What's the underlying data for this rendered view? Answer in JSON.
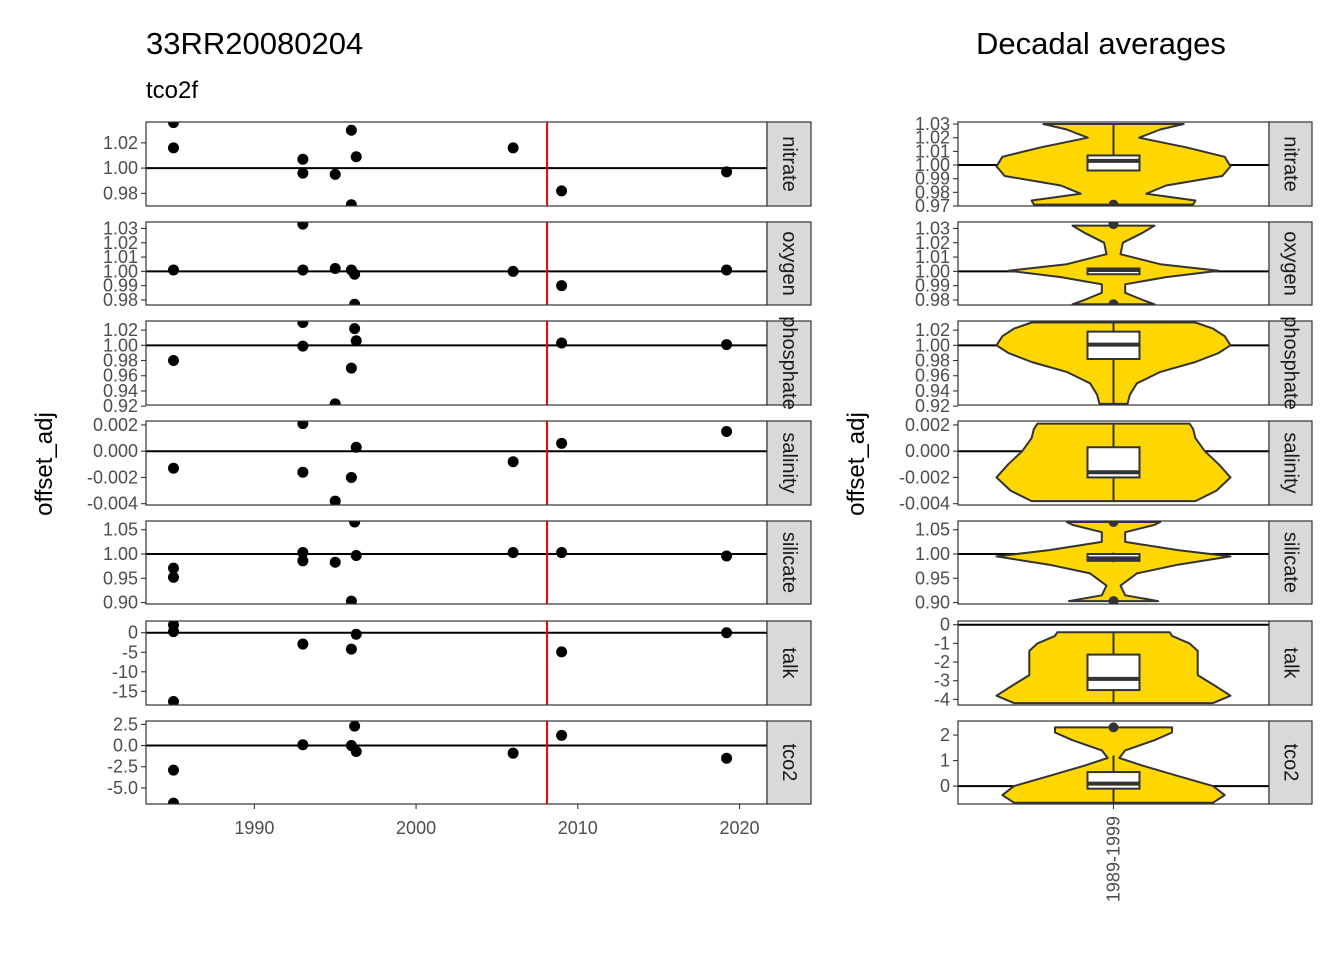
{
  "chart_data": [
    {
      "type": "scatter",
      "title": "33RR20080204",
      "subtitle": "tco2f",
      "xlabel": "",
      "ylabel": "offset_adj",
      "xlim": [
        1983.3,
        2021.7
      ],
      "xticks": [
        1990,
        2000,
        2010,
        2020
      ],
      "xtick_labels": [
        "1990",
        "2000",
        "2010",
        "2020"
      ],
      "reference_year": 2008.1,
      "reference_color": "#ee0000",
      "point_color": "#000000",
      "hline_color": "#000000",
      "panels": [
        {
          "facet": "nitrate",
          "hline": 1.0,
          "ylim": [
            0.97,
            1.0365
          ],
          "yticks": [
            0.98,
            1.0,
            1.02
          ],
          "ytick_labels": [
            "0.98",
            "1.00",
            "1.02"
          ],
          "points": [
            {
              "x": 1985,
              "y": 1.036
            },
            {
              "x": 1985,
              "y": 1.016
            },
            {
              "x": 1993,
              "y": 1.007
            },
            {
              "x": 1993,
              "y": 0.996
            },
            {
              "x": 1995,
              "y": 0.995
            },
            {
              "x": 1996,
              "y": 1.03
            },
            {
              "x": 1996,
              "y": 0.971
            },
            {
              "x": 1996.3,
              "y": 1.009
            },
            {
              "x": 2006,
              "y": 1.016
            },
            {
              "x": 2009,
              "y": 0.982
            },
            {
              "x": 2019.2,
              "y": 0.997
            }
          ]
        },
        {
          "facet": "oxygen",
          "hline": 1.0,
          "ylim": [
            0.9765,
            1.0345
          ],
          "yticks": [
            0.98,
            0.99,
            1.0,
            1.01,
            1.02,
            1.03
          ],
          "ytick_labels": [
            "0.98",
            "0.99",
            "1.00",
            "1.01",
            "1.02",
            "1.03"
          ],
          "points": [
            {
              "x": 1985,
              "y": 1.001
            },
            {
              "x": 1993,
              "y": 1.033
            },
            {
              "x": 1993,
              "y": 1.001
            },
            {
              "x": 1995,
              "y": 1.002
            },
            {
              "x": 1996,
              "y": 1.001
            },
            {
              "x": 1996.2,
              "y": 0.998
            },
            {
              "x": 1996.2,
              "y": 0.977
            },
            {
              "x": 2006,
              "y": 1.0
            },
            {
              "x": 2009,
              "y": 0.99
            },
            {
              "x": 2019.2,
              "y": 1.001
            }
          ]
        },
        {
          "facet": "phosphate",
          "hline": 1.0,
          "ylim": [
            0.9215,
            1.032
          ],
          "yticks": [
            0.92,
            0.94,
            0.96,
            0.98,
            1.0,
            1.02
          ],
          "ytick_labels": [
            "0.92",
            "0.94",
            "0.96",
            "0.98",
            "1.00",
            "1.02"
          ],
          "points": [
            {
              "x": 1985,
              "y": 0.98
            },
            {
              "x": 1993,
              "y": 1.03
            },
            {
              "x": 1993,
              "y": 0.999
            },
            {
              "x": 1995,
              "y": 0.923
            },
            {
              "x": 1996,
              "y": 0.97
            },
            {
              "x": 1996.2,
              "y": 1.022
            },
            {
              "x": 1996.3,
              "y": 1.006
            },
            {
              "x": 2009,
              "y": 1.003
            },
            {
              "x": 2019.2,
              "y": 1.001
            }
          ]
        },
        {
          "facet": "salinity",
          "hline": 0.0,
          "ylim": [
            -0.0041,
            0.0023
          ],
          "yticks": [
            -0.004,
            -0.002,
            0.0,
            0.002
          ],
          "ytick_labels": [
            "-0.004",
            "-0.002",
            "0.000",
            "0.002"
          ],
          "points": [
            {
              "x": 1985,
              "y": -0.0013
            },
            {
              "x": 1993,
              "y": 0.0021
            },
            {
              "x": 1993,
              "y": -0.0016
            },
            {
              "x": 1995,
              "y": -0.0038
            },
            {
              "x": 1996,
              "y": -0.002
            },
            {
              "x": 1996.3,
              "y": 0.0003
            },
            {
              "x": 2006,
              "y": -0.0008
            },
            {
              "x": 2009,
              "y": 0.0006
            },
            {
              "x": 2019.2,
              "y": 0.0015
            }
          ]
        },
        {
          "facet": "silicate",
          "hline": 1.0,
          "ylim": [
            0.897,
            1.068
          ],
          "yticks": [
            0.9,
            0.95,
            1.0,
            1.05
          ],
          "ytick_labels": [
            "0.90",
            "0.95",
            "1.00",
            "1.05"
          ],
          "points": [
            {
              "x": 1985,
              "y": 0.971
            },
            {
              "x": 1985,
              "y": 0.952
            },
            {
              "x": 1993,
              "y": 1.003
            },
            {
              "x": 1993,
              "y": 0.986
            },
            {
              "x": 1995,
              "y": 0.983
            },
            {
              "x": 1996.2,
              "y": 1.066
            },
            {
              "x": 1996,
              "y": 0.903
            },
            {
              "x": 1996.3,
              "y": 0.997
            },
            {
              "x": 2006,
              "y": 1.003
            },
            {
              "x": 2009,
              "y": 1.003
            },
            {
              "x": 2019.2,
              "y": 0.996
            }
          ]
        },
        {
          "facet": "talk",
          "hline": 0.0,
          "ylim": [
            -18.5,
            3.0
          ],
          "yticks": [
            -15,
            -10,
            -5,
            0
          ],
          "ytick_labels": [
            "-15",
            "-10",
            "-5",
            "0"
          ],
          "points": [
            {
              "x": 1985,
              "y": 2.0
            },
            {
              "x": 1985,
              "y": 0.3
            },
            {
              "x": 1985,
              "y": -17.6
            },
            {
              "x": 1993,
              "y": -2.9
            },
            {
              "x": 1996,
              "y": -4.2
            },
            {
              "x": 1996.3,
              "y": -0.4
            },
            {
              "x": 2009,
              "y": -4.9
            },
            {
              "x": 2019.2,
              "y": 0.0
            }
          ]
        },
        {
          "facet": "tco2",
          "hline": 0.0,
          "ylim": [
            -6.9,
            2.9
          ],
          "yticks": [
            -5.0,
            -2.5,
            0.0,
            2.5
          ],
          "ytick_labels": [
            "-5.0",
            "-2.5",
            "0.0",
            "2.5"
          ],
          "points": [
            {
              "x": 1985,
              "y": -2.9
            },
            {
              "x": 1985,
              "y": -6.8
            },
            {
              "x": 1993,
              "y": 0.1
            },
            {
              "x": 1996,
              "y": 0.0
            },
            {
              "x": 1996.2,
              "y": 2.3
            },
            {
              "x": 1996.3,
              "y": -0.7
            },
            {
              "x": 2006,
              "y": -0.9
            },
            {
              "x": 2009,
              "y": 1.2
            },
            {
              "x": 2019.2,
              "y": -1.5
            }
          ]
        }
      ]
    },
    {
      "type": "violin",
      "title": "Decadal averages",
      "xlabel": "",
      "ylabel": "offset_adj",
      "categories": [
        "1989-1999"
      ],
      "fill_color": "#ffd700",
      "outline_color": "#333333",
      "panels": [
        {
          "facet": "nitrate",
          "hline": 1.0,
          "ylim": [
            0.97,
            1.0315
          ],
          "yticks": [
            0.97,
            0.98,
            0.99,
            1.0,
            1.01,
            1.02,
            1.03
          ],
          "ytick_labels": [
            "0.97",
            "0.98",
            "0.99",
            "1.00",
            "1.01",
            "1.02",
            "1.03"
          ],
          "violin": [
            [
              0.971,
              0.68
            ],
            [
              0.974,
              0.7
            ],
            [
              0.979,
              0.28
            ],
            [
              0.985,
              0.45
            ],
            [
              0.992,
              0.93
            ],
            [
              0.999,
              1.0
            ],
            [
              1.006,
              0.95
            ],
            [
              1.013,
              0.62
            ],
            [
              1.02,
              0.22
            ],
            [
              1.026,
              0.4
            ],
            [
              1.03,
              0.6
            ]
          ],
          "box": {
            "lower": 0.996,
            "q1": 0.996,
            "median": 1.003,
            "q3": 1.007,
            "upper": 1.03
          },
          "outliers": [
            0.971
          ]
        },
        {
          "facet": "oxygen",
          "hline": 1.0,
          "ylim": [
            0.9765,
            1.0345
          ],
          "yticks": [
            0.98,
            0.99,
            1.0,
            1.01,
            1.02,
            1.03
          ],
          "ytick_labels": [
            "0.98",
            "0.99",
            "1.00",
            "1.01",
            "1.02",
            "1.03"
          ],
          "violin": [
            [
              0.977,
              0.35
            ],
            [
              0.98,
              0.25
            ],
            [
              0.985,
              0.1
            ],
            [
              0.991,
              0.1
            ],
            [
              0.996,
              0.45
            ],
            [
              1.0005,
              0.9
            ],
            [
              1.005,
              0.4
            ],
            [
              1.012,
              0.06
            ],
            [
              1.02,
              0.08
            ],
            [
              1.027,
              0.25
            ],
            [
              1.032,
              0.35
            ]
          ],
          "box": {
            "lower": 0.998,
            "q1": 0.998,
            "median": 1.001,
            "q3": 1.002,
            "upper": 1.002
          },
          "outliers": [
            1.033,
            0.977
          ]
        },
        {
          "facet": "phosphate",
          "hline": 1.0,
          "ylim": [
            0.9215,
            1.032
          ],
          "yticks": [
            0.92,
            0.94,
            0.96,
            0.98,
            1.0,
            1.02
          ],
          "ytick_labels": [
            "0.92",
            "0.94",
            "0.96",
            "0.98",
            "1.00",
            "1.02"
          ],
          "violin": [
            [
              0.923,
              0.12
            ],
            [
              0.935,
              0.14
            ],
            [
              0.95,
              0.2
            ],
            [
              0.965,
              0.4
            ],
            [
              0.978,
              0.7
            ],
            [
              0.99,
              0.9
            ],
            [
              1.0,
              1.0
            ],
            [
              1.012,
              0.95
            ],
            [
              1.022,
              0.85
            ],
            [
              1.03,
              0.7
            ]
          ],
          "box": {
            "lower": 0.923,
            "q1": 0.982,
            "median": 1.001,
            "q3": 1.018,
            "upper": 1.03
          },
          "outliers": []
        },
        {
          "facet": "salinity",
          "hline": 0.0,
          "ylim": [
            -0.0041,
            0.0023
          ],
          "yticks": [
            -0.004,
            -0.002,
            0.0,
            0.002
          ],
          "ytick_labels": [
            "-0.004",
            "-0.002",
            "0.000",
            "0.002"
          ],
          "violin": [
            [
              -0.0038,
              0.7
            ],
            [
              -0.003,
              0.88
            ],
            [
              -0.002,
              1.0
            ],
            [
              -0.001,
              0.9
            ],
            [
              0.0,
              0.78
            ],
            [
              0.001,
              0.7
            ],
            [
              0.0017,
              0.68
            ],
            [
              0.0021,
              0.65
            ]
          ],
          "box": {
            "lower": -0.0038,
            "q1": -0.002,
            "median": -0.0016,
            "q3": 0.0003,
            "upper": 0.0021
          },
          "outliers": []
        },
        {
          "facet": "silicate",
          "hline": 1.0,
          "ylim": [
            0.897,
            1.068
          ],
          "yticks": [
            0.9,
            0.95,
            1.0,
            1.05
          ],
          "ytick_labels": [
            "0.90",
            "0.95",
            "1.00",
            "1.05"
          ],
          "violin": [
            [
              0.903,
              0.38
            ],
            [
              0.915,
              0.1
            ],
            [
              0.935,
              0.06
            ],
            [
              0.96,
              0.2
            ],
            [
              0.978,
              0.55
            ],
            [
              0.995,
              1.0
            ],
            [
              1.008,
              0.55
            ],
            [
              1.025,
              0.1
            ],
            [
              1.045,
              0.1
            ],
            [
              1.06,
              0.35
            ],
            [
              1.066,
              0.4
            ]
          ],
          "box": {
            "lower": 0.983,
            "q1": 0.986,
            "median": 0.991,
            "q3": 1.0,
            "upper": 1.003
          },
          "outliers": [
            1.066,
            0.903
          ]
        },
        {
          "facet": "talk",
          "hline": 0.0,
          "ylim": [
            -4.3,
            0.2
          ],
          "yticks": [
            -4,
            -3,
            -2,
            -1,
            0
          ],
          "ytick_labels": [
            "-4",
            "-3",
            "-2",
            "-1",
            "0"
          ],
          "violin": [
            [
              -4.2,
              0.85
            ],
            [
              -3.8,
              1.0
            ],
            [
              -3.2,
              0.85
            ],
            [
              -2.7,
              0.72
            ],
            [
              -2.0,
              0.72
            ],
            [
              -1.4,
              0.72
            ],
            [
              -1.0,
              0.65
            ],
            [
              -0.6,
              0.5
            ],
            [
              -0.4,
              0.48
            ]
          ],
          "box": {
            "lower": -4.2,
            "q1": -3.5,
            "median": -2.9,
            "q3": -1.6,
            "upper": -0.4
          },
          "outliers": []
        },
        {
          "facet": "tco2",
          "hline": 0.0,
          "ylim": [
            -0.7,
            2.55
          ],
          "yticks": [
            0,
            1,
            2
          ],
          "ytick_labels": [
            "0",
            "1",
            "2"
          ],
          "violin": [
            [
              -0.65,
              0.85
            ],
            [
              -0.35,
              0.95
            ],
            [
              0.0,
              0.85
            ],
            [
              0.4,
              0.55
            ],
            [
              0.8,
              0.25
            ],
            [
              1.1,
              0.05
            ],
            [
              1.4,
              0.1
            ],
            [
              1.8,
              0.35
            ],
            [
              2.1,
              0.5
            ],
            [
              2.3,
              0.5
            ]
          ],
          "box": {
            "lower": -0.65,
            "q1": -0.1,
            "median": 0.1,
            "q3": 0.55,
            "upper": 1.2
          },
          "outliers": [
            2.3
          ]
        }
      ]
    }
  ]
}
